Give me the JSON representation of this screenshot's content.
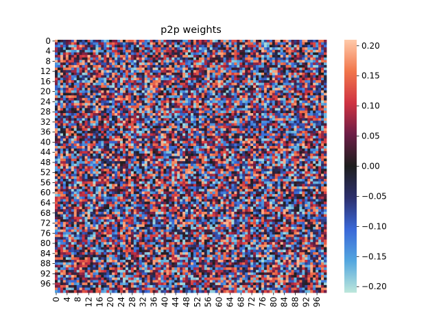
{
  "chart_data": {
    "type": "heatmap",
    "title": "p2p weights",
    "xlabel": "",
    "ylabel": "",
    "rows": 100,
    "cols": 100,
    "x_tick_labels": [
      "0",
      "4",
      "8",
      "12",
      "16",
      "20",
      "24",
      "28",
      "32",
      "36",
      "40",
      "44",
      "48",
      "52",
      "56",
      "60",
      "64",
      "68",
      "72",
      "76",
      "80",
      "84",
      "88",
      "92",
      "96"
    ],
    "y_tick_labels": [
      "0",
      "4",
      "8",
      "12",
      "16",
      "20",
      "24",
      "28",
      "32",
      "36",
      "40",
      "44",
      "48",
      "52",
      "56",
      "60",
      "64",
      "68",
      "72",
      "76",
      "80",
      "84",
      "88",
      "92",
      "96"
    ],
    "colorbar": {
      "vmin": -0.21,
      "vmax": 0.21,
      "tick_values": [
        0.2,
        0.15,
        0.1,
        0.05,
        0.0,
        -0.05,
        -0.1,
        -0.15,
        -0.2
      ],
      "tick_labels": [
        "0.20",
        "0.15",
        "0.10",
        "0.05",
        "0.00",
        "−0.05",
        "−0.10",
        "−0.15",
        "−0.20"
      ],
      "colormap": "icefire",
      "colormap_stops": [
        "#bde7db",
        "#54a7df",
        "#3a68d8",
        "#2d306d",
        "#1e1e1e",
        "#6b1e46",
        "#cf3342",
        "#f1764b",
        "#ffcaaa"
      ]
    },
    "value_distribution": "uniform random weights between -0.2 and 0.2"
  }
}
